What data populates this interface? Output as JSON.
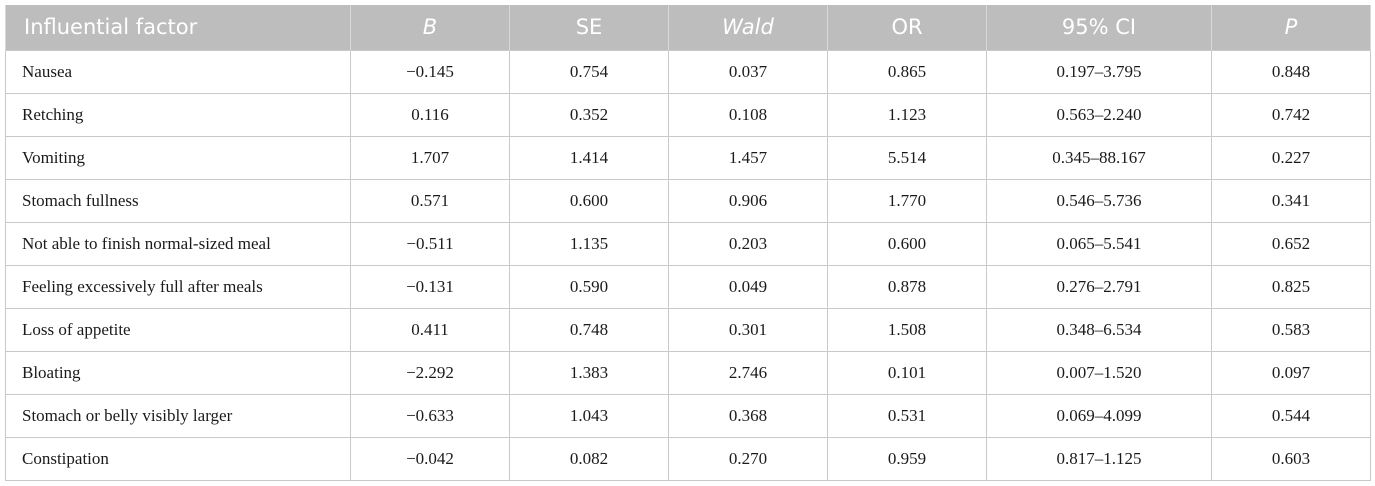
{
  "table": {
    "headers": [
      "Influential factor",
      "B",
      "SE",
      "Wald",
      "OR",
      "95% CI",
      "P"
    ],
    "rows": [
      [
        "Nausea",
        "−0.145",
        "0.754",
        "0.037",
        "0.865",
        "0.197–3.795",
        "0.848"
      ],
      [
        "Retching",
        "0.116",
        "0.352",
        "0.108",
        "1.123",
        "0.563–2.240",
        "0.742"
      ],
      [
        "Vomiting",
        "1.707",
        "1.414",
        "1.457",
        "5.514",
        "0.345–88.167",
        "0.227"
      ],
      [
        "Stomach fullness",
        "0.571",
        "0.600",
        "0.906",
        "1.770",
        "0.546–5.736",
        "0.341"
      ],
      [
        "Not able to finish normal-sized meal",
        "−0.511",
        "1.135",
        "0.203",
        "0.600",
        "0.065–5.541",
        "0.652"
      ],
      [
        "Feeling excessively full after meals",
        "−0.131",
        "0.590",
        "0.049",
        "0.878",
        "0.276–2.791",
        "0.825"
      ],
      [
        "Loss of appetite",
        "0.411",
        "0.748",
        "0.301",
        "1.508",
        "0.348–6.534",
        "0.583"
      ],
      [
        "Bloating",
        "−2.292",
        "1.383",
        "2.746",
        "0.101",
        "0.007–1.520",
        "0.097"
      ],
      [
        "Stomach or belly visibly larger",
        "−0.633",
        "1.043",
        "0.368",
        "0.531",
        "0.069–4.099",
        "0.544"
      ],
      [
        "Constipation",
        "−0.042",
        "0.082",
        "0.270",
        "0.959",
        "0.817–1.125",
        "0.603"
      ]
    ]
  }
}
